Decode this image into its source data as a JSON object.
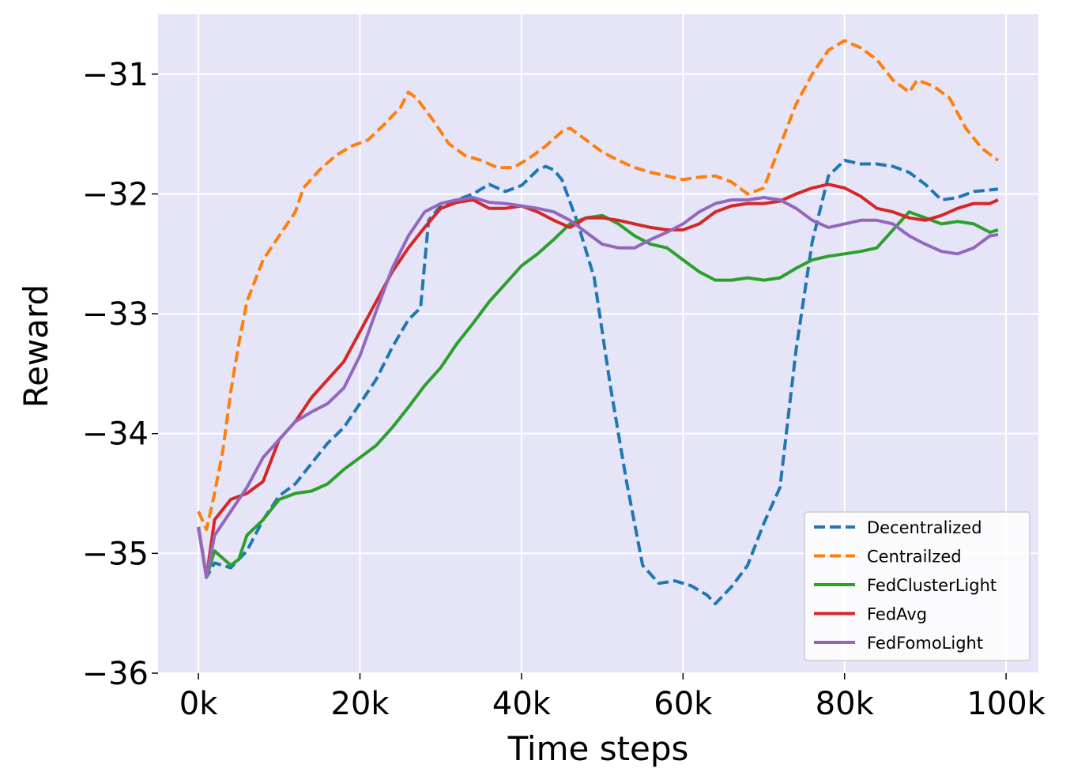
{
  "chart_data": {
    "type": "line",
    "title": "",
    "xlabel": "Time steps",
    "ylabel": "Reward",
    "xlim": [
      -5000,
      104000
    ],
    "ylim": [
      -36,
      -30.5
    ],
    "x_ticks": [
      0,
      20000,
      40000,
      60000,
      80000,
      100000
    ],
    "x_tick_labels": [
      "0k",
      "20k",
      "40k",
      "60k",
      "80k",
      "100k"
    ],
    "y_ticks": [
      -36,
      -35,
      -34,
      -33,
      -32,
      -31
    ],
    "y_tick_labels": [
      "−36",
      "−35",
      "−34",
      "−33",
      "−32",
      "−31"
    ],
    "grid": true,
    "legend_position": "bottom-right",
    "colors": {
      "background": "#e5e5f7",
      "grid": "#ffffff",
      "Decentralized": "#1f77b4",
      "Centrailzed": "#ff7f0e",
      "FedClusterLight": "#2ca02c",
      "FedAvg": "#d62728",
      "FedFomoLight": "#9467bd"
    },
    "series": [
      {
        "name": "Decentralized",
        "style": "dashed",
        "x": [
          0,
          1000,
          2000,
          4000,
          6000,
          8000,
          10000,
          12000,
          14000,
          16000,
          18000,
          20000,
          22000,
          24000,
          26000,
          27500,
          28500,
          30000,
          32000,
          34000,
          36000,
          38000,
          40000,
          42000,
          43000,
          44000,
          45000,
          47000,
          49000,
          51000,
          53000,
          55000,
          57000,
          59000,
          61000,
          63000,
          64000,
          66000,
          68000,
          70000,
          72000,
          74000,
          76000,
          78000,
          80000,
          82000,
          84000,
          86000,
          88000,
          90000,
          92000,
          94000,
          96000,
          99000
        ],
        "values": [
          -34.78,
          -35.2,
          -35.08,
          -35.12,
          -34.98,
          -34.72,
          -34.52,
          -34.42,
          -34.25,
          -34.08,
          -33.95,
          -33.75,
          -33.55,
          -33.28,
          -33.05,
          -32.95,
          -32.22,
          -32.1,
          -32.05,
          -32.0,
          -31.92,
          -31.98,
          -31.93,
          -31.8,
          -31.77,
          -31.8,
          -31.88,
          -32.25,
          -32.7,
          -33.6,
          -34.4,
          -35.1,
          -35.25,
          -35.23,
          -35.27,
          -35.35,
          -35.42,
          -35.28,
          -35.1,
          -34.75,
          -34.45,
          -33.3,
          -32.4,
          -31.85,
          -31.72,
          -31.75,
          -31.75,
          -31.77,
          -31.82,
          -31.92,
          -32.05,
          -32.03,
          -31.98,
          -31.96
        ]
      },
      {
        "name": "Centrailzed",
        "style": "dashed",
        "x": [
          0,
          1000,
          2000,
          3000,
          4000,
          5000,
          6000,
          8000,
          10000,
          12000,
          13000,
          15000,
          17000,
          19000,
          21000,
          23000,
          25000,
          26000,
          27000,
          29000,
          31000,
          33000,
          35000,
          37000,
          39000,
          41000,
          43000,
          45000,
          46000,
          48000,
          50000,
          52000,
          54000,
          56000,
          58000,
          60000,
          62000,
          64000,
          66000,
          68000,
          70000,
          72000,
          74000,
          76000,
          78000,
          80000,
          82000,
          84000,
          86000,
          88000,
          89000,
          91000,
          93000,
          95000,
          97000,
          99000
        ],
        "values": [
          -34.65,
          -34.8,
          -34.5,
          -34.15,
          -33.65,
          -33.25,
          -32.9,
          -32.55,
          -32.35,
          -32.15,
          -31.95,
          -31.8,
          -31.68,
          -31.6,
          -31.55,
          -31.42,
          -31.28,
          -31.15,
          -31.2,
          -31.38,
          -31.58,
          -31.68,
          -31.72,
          -31.78,
          -31.78,
          -31.7,
          -31.6,
          -31.48,
          -31.45,
          -31.55,
          -31.65,
          -31.72,
          -31.78,
          -31.82,
          -31.85,
          -31.88,
          -31.86,
          -31.85,
          -31.9,
          -32.0,
          -31.95,
          -31.6,
          -31.25,
          -31.0,
          -30.8,
          -30.72,
          -30.78,
          -30.88,
          -31.05,
          -31.15,
          -31.05,
          -31.1,
          -31.2,
          -31.45,
          -31.62,
          -31.72
        ]
      },
      {
        "name": "FedClusterLight",
        "style": "solid",
        "x": [
          0,
          1000,
          2000,
          4000,
          5000,
          6000,
          8000,
          10000,
          12000,
          14000,
          16000,
          18000,
          20000,
          22000,
          24000,
          26000,
          28000,
          30000,
          32000,
          34000,
          36000,
          38000,
          40000,
          42000,
          44000,
          46000,
          48000,
          50000,
          52000,
          54000,
          56000,
          58000,
          60000,
          62000,
          64000,
          66000,
          68000,
          70000,
          72000,
          74000,
          76000,
          78000,
          80000,
          82000,
          84000,
          86000,
          88000,
          90000,
          92000,
          94000,
          96000,
          98000,
          99000
        ],
        "values": [
          -34.78,
          -35.2,
          -34.98,
          -35.1,
          -35.05,
          -34.85,
          -34.72,
          -34.55,
          -34.5,
          -34.48,
          -34.42,
          -34.3,
          -34.2,
          -34.1,
          -33.95,
          -33.78,
          -33.6,
          -33.45,
          -33.25,
          -33.08,
          -32.9,
          -32.75,
          -32.6,
          -32.5,
          -32.38,
          -32.25,
          -32.2,
          -32.18,
          -32.25,
          -32.35,
          -32.42,
          -32.45,
          -32.55,
          -32.65,
          -32.72,
          -32.72,
          -32.7,
          -32.72,
          -32.7,
          -32.62,
          -32.55,
          -32.52,
          -32.5,
          -32.48,
          -32.45,
          -32.3,
          -32.15,
          -32.2,
          -32.25,
          -32.23,
          -32.25,
          -32.32,
          -32.3
        ]
      },
      {
        "name": "FedAvg",
        "style": "solid",
        "x": [
          0,
          1000,
          2000,
          4000,
          6000,
          8000,
          10000,
          12000,
          14000,
          16000,
          18000,
          20000,
          22000,
          24000,
          26000,
          28000,
          30000,
          32000,
          34000,
          36000,
          38000,
          40000,
          42000,
          44000,
          46000,
          48000,
          50000,
          52000,
          54000,
          56000,
          58000,
          60000,
          62000,
          64000,
          66000,
          68000,
          70000,
          72000,
          74000,
          76000,
          78000,
          80000,
          82000,
          84000,
          86000,
          88000,
          90000,
          92000,
          94000,
          96000,
          98000,
          99000
        ],
        "values": [
          -34.78,
          -35.2,
          -34.72,
          -34.55,
          -34.5,
          -34.4,
          -34.05,
          -33.9,
          -33.7,
          -33.55,
          -33.4,
          -33.15,
          -32.9,
          -32.65,
          -32.45,
          -32.28,
          -32.12,
          -32.07,
          -32.05,
          -32.12,
          -32.12,
          -32.1,
          -32.15,
          -32.22,
          -32.28,
          -32.2,
          -32.2,
          -32.22,
          -32.25,
          -32.28,
          -32.3,
          -32.3,
          -32.25,
          -32.15,
          -32.1,
          -32.08,
          -32.08,
          -32.06,
          -32.0,
          -31.95,
          -31.92,
          -31.95,
          -32.02,
          -32.12,
          -32.15,
          -32.2,
          -32.22,
          -32.18,
          -32.12,
          -32.08,
          -32.08,
          -32.05
        ]
      },
      {
        "name": "FedFomoLight",
        "style": "solid",
        "x": [
          0,
          1000,
          2000,
          4000,
          6000,
          8000,
          10000,
          12000,
          14000,
          16000,
          18000,
          20000,
          22000,
          24000,
          26000,
          28000,
          30000,
          32000,
          34000,
          36000,
          38000,
          40000,
          42000,
          44000,
          46000,
          48000,
          50000,
          52000,
          54000,
          56000,
          58000,
          60000,
          62000,
          64000,
          66000,
          68000,
          70000,
          72000,
          74000,
          76000,
          78000,
          80000,
          82000,
          84000,
          86000,
          88000,
          90000,
          92000,
          94000,
          96000,
          98000,
          99000
        ],
        "values": [
          -34.78,
          -35.2,
          -34.85,
          -34.65,
          -34.45,
          -34.2,
          -34.05,
          -33.9,
          -33.82,
          -33.75,
          -33.62,
          -33.35,
          -32.98,
          -32.62,
          -32.35,
          -32.15,
          -32.08,
          -32.05,
          -32.03,
          -32.07,
          -32.08,
          -32.1,
          -32.12,
          -32.15,
          -32.22,
          -32.32,
          -32.42,
          -32.45,
          -32.45,
          -32.38,
          -32.32,
          -32.25,
          -32.15,
          -32.08,
          -32.05,
          -32.05,
          -32.03,
          -32.05,
          -32.12,
          -32.22,
          -32.28,
          -32.25,
          -32.22,
          -32.22,
          -32.25,
          -32.35,
          -32.42,
          -32.48,
          -32.5,
          -32.45,
          -32.35,
          -32.34
        ]
      }
    ]
  }
}
